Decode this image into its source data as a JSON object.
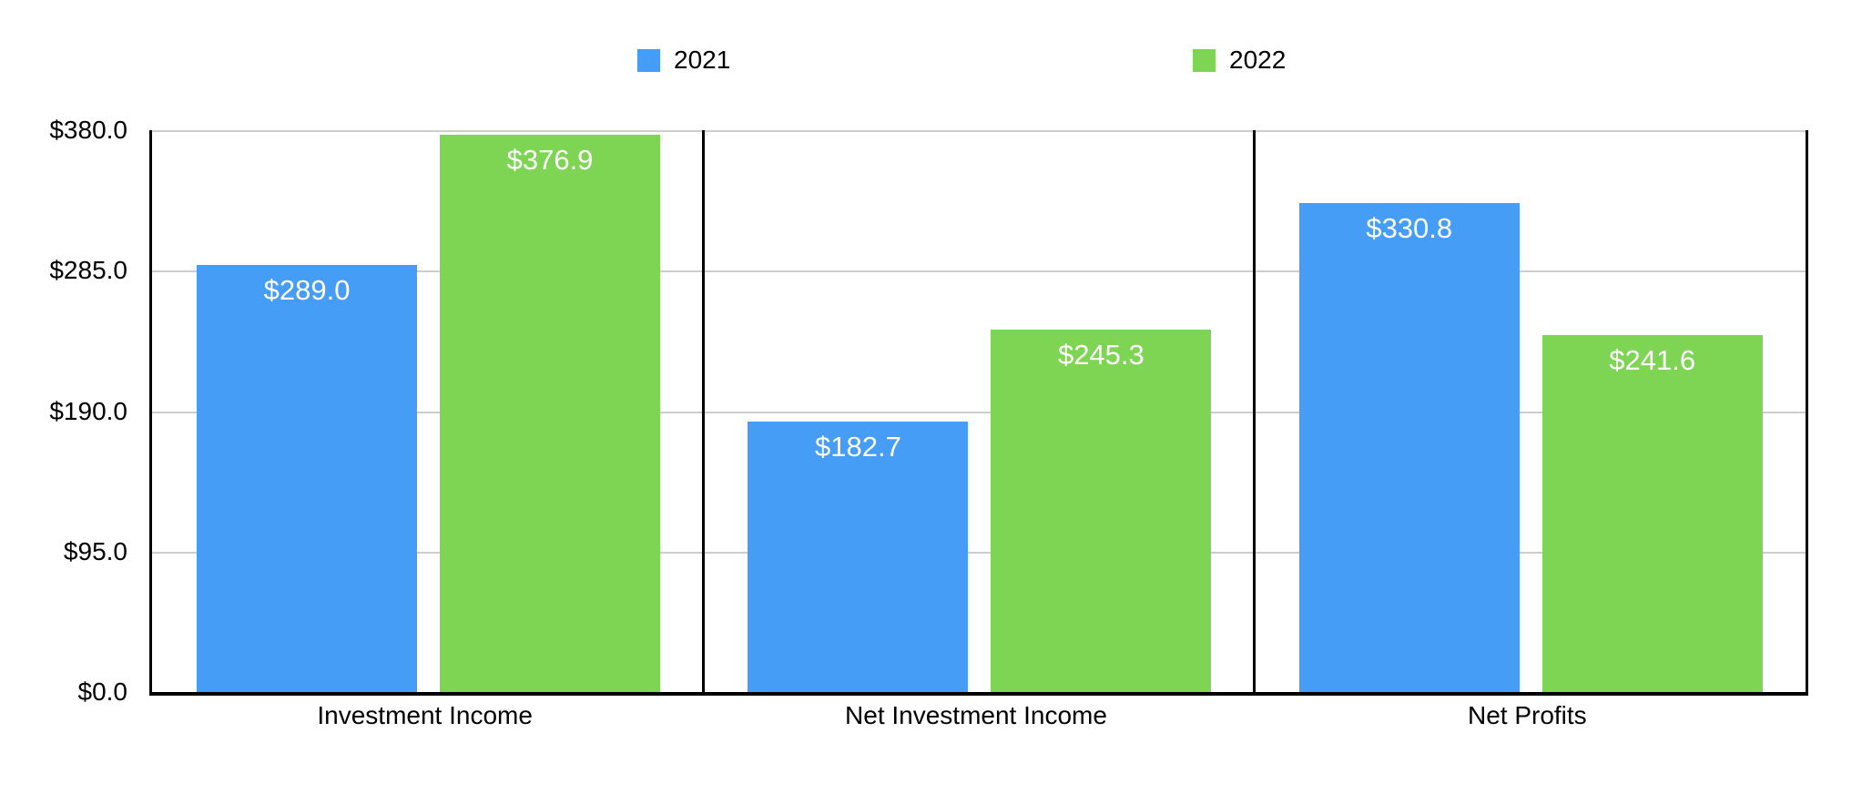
{
  "chart_data": {
    "type": "bar",
    "title": "",
    "categories": [
      "Investment Income",
      "Net Investment Income",
      "Net Profits"
    ],
    "series": [
      {
        "name": "2021",
        "color": "#469DF5",
        "values": [
          289.0,
          182.7,
          330.8
        ]
      },
      {
        "name": "2022",
        "color": "#7ED554",
        "values": [
          376.9,
          245.3,
          241.6
        ]
      }
    ],
    "value_prefix": "$",
    "value_decimals": 1,
    "data_labels": [
      [
        "$289.0",
        "$182.7",
        "$330.8"
      ],
      [
        "$376.9",
        "$245.3",
        "$241.6"
      ]
    ],
    "ylabel": "",
    "xlabel": "",
    "ylim": [
      0,
      380
    ],
    "y_ticks": [
      {
        "value": 380,
        "label": "$380.0"
      },
      {
        "value": 285,
        "label": "$285.0"
      },
      {
        "value": 190,
        "label": "$190.0"
      },
      {
        "value": 95,
        "label": "$95.0"
      },
      {
        "value": 0,
        "label": "$0.0"
      }
    ],
    "grid": true,
    "panel_dividers": true,
    "legend_position": "top",
    "colors": {
      "gridline": "#cdcdcd",
      "axis": "#000000",
      "bar_label_text": "#ffffff",
      "background": "#ffffff"
    }
  }
}
